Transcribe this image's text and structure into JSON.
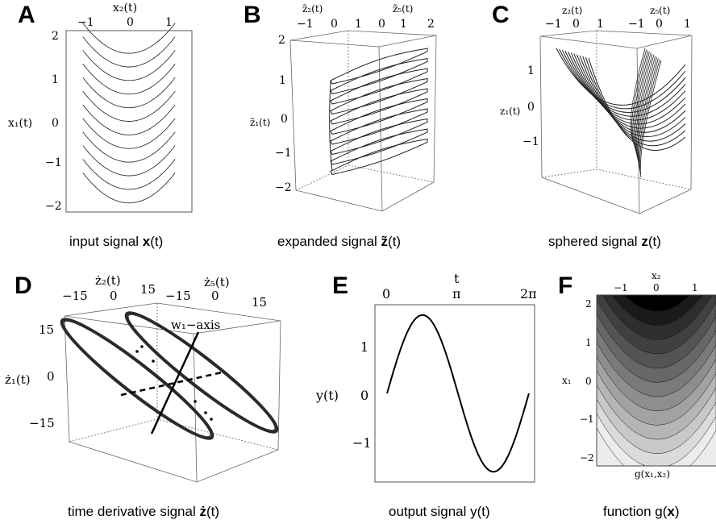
{
  "panels": {
    "A": {
      "letter": "A",
      "caption_pre": "input signal ",
      "caption_bold": "x",
      "caption_post": "(t)",
      "top_axis_label": "x₂(t)",
      "top_ticks": [
        "−1",
        "0",
        "1"
      ],
      "left_axis_label": "x₁(t)",
      "left_ticks": [
        "2",
        "1",
        "0",
        "−1",
        "−2"
      ]
    },
    "B": {
      "letter": "B",
      "caption_pre": "expanded signal ",
      "caption_bold": "z̃",
      "caption_post": "(t)",
      "top_axis_label_1": "z̃₂(t)",
      "top_axis_label_2": "z̃₅(t)",
      "top_ticks_1": [
        "−1",
        "0",
        "1"
      ],
      "top_ticks_2": [
        "0",
        "1",
        "2"
      ],
      "left_axis_label": "z̃₁(t)",
      "left_ticks": [
        "2",
        "1",
        "0",
        "−1",
        "−2"
      ]
    },
    "C": {
      "letter": "C",
      "caption_pre": "sphered signal ",
      "caption_bold": "z",
      "caption_post": "(t)",
      "top_axis_label_1": "z₂(t)",
      "top_axis_label_2": "z₅(t)",
      "top_ticks_1": [
        "−1",
        "0",
        "1"
      ],
      "top_ticks_2": [
        "−1",
        "0",
        "1"
      ],
      "left_axis_label": "z₁(t)",
      "left_ticks": [
        "1",
        "0",
        "−1"
      ]
    },
    "D": {
      "letter": "D",
      "caption_pre": "time derivative signal ",
      "caption_bold": "ż",
      "caption_post": "(t)",
      "top_axis_label_1": "ż₂(t)",
      "top_axis_label_2": "ż₅(t)",
      "top_ticks_1": [
        "−15",
        "0",
        "15"
      ],
      "top_ticks_2": [
        "−15",
        "0",
        "15"
      ],
      "left_axis_label": "ż₁(t)",
      "left_ticks": [
        "15",
        "0",
        "−15"
      ],
      "annotation": "w₁−axis"
    },
    "E": {
      "letter": "E",
      "caption": "output signal y(t)",
      "top_axis_label": "t",
      "top_ticks": [
        "0",
        "π",
        "2π"
      ],
      "left_axis_label": "y(t)",
      "left_ticks": [
        "1",
        "0",
        "−1"
      ]
    },
    "F": {
      "letter": "F",
      "caption_pre": "function g(",
      "caption_bold": "x",
      "caption_post": ")",
      "top_axis_label": "x₂",
      "top_ticks": [
        "−1",
        "0",
        "1"
      ],
      "left_axis_label": "x₁",
      "left_ticks": [
        "2",
        "1",
        "0",
        "−1",
        "−2"
      ],
      "bottom_label": "g(x₁,x₂)"
    }
  },
  "chart_data": [
    {
      "panel": "A",
      "type": "line",
      "description_formula": "x1 = x2^2 + offset",
      "x_range": [
        -1.5,
        1.5
      ],
      "y_range": [
        -2,
        2
      ],
      "curve_offsets": [
        -1.8,
        -1.5,
        -1.2,
        -0.9,
        -0.6,
        -0.3,
        0.0,
        0.3,
        0.6,
        0.9,
        1.2,
        1.5
      ]
    },
    {
      "panel": "E",
      "type": "line",
      "x_range": [
        0,
        6.2832
      ],
      "y_range": [
        -1.6,
        1.6
      ],
      "x": [
        0,
        0.785,
        1.571,
        2.356,
        3.142,
        3.927,
        4.712,
        5.498,
        6.283
      ],
      "y": [
        0,
        1.0,
        1.414,
        1.0,
        0,
        -1.0,
        -1.414,
        -1.0,
        0
      ]
    },
    {
      "panel": "F",
      "type": "heatmap",
      "x_range": [
        -1.6,
        1.6
      ],
      "y_range": [
        -2.2,
        2.2
      ],
      "contour_levels": 12,
      "colors": [
        "#000000",
        "#1a1a1a",
        "#2e2e2e",
        "#404040",
        "#545454",
        "#676767",
        "#7a7a7a",
        "#8e8e8e",
        "#a2a2a2",
        "#b5b5b5",
        "#c8c8c8",
        "#dbdbdb",
        "#ececec"
      ]
    }
  ]
}
